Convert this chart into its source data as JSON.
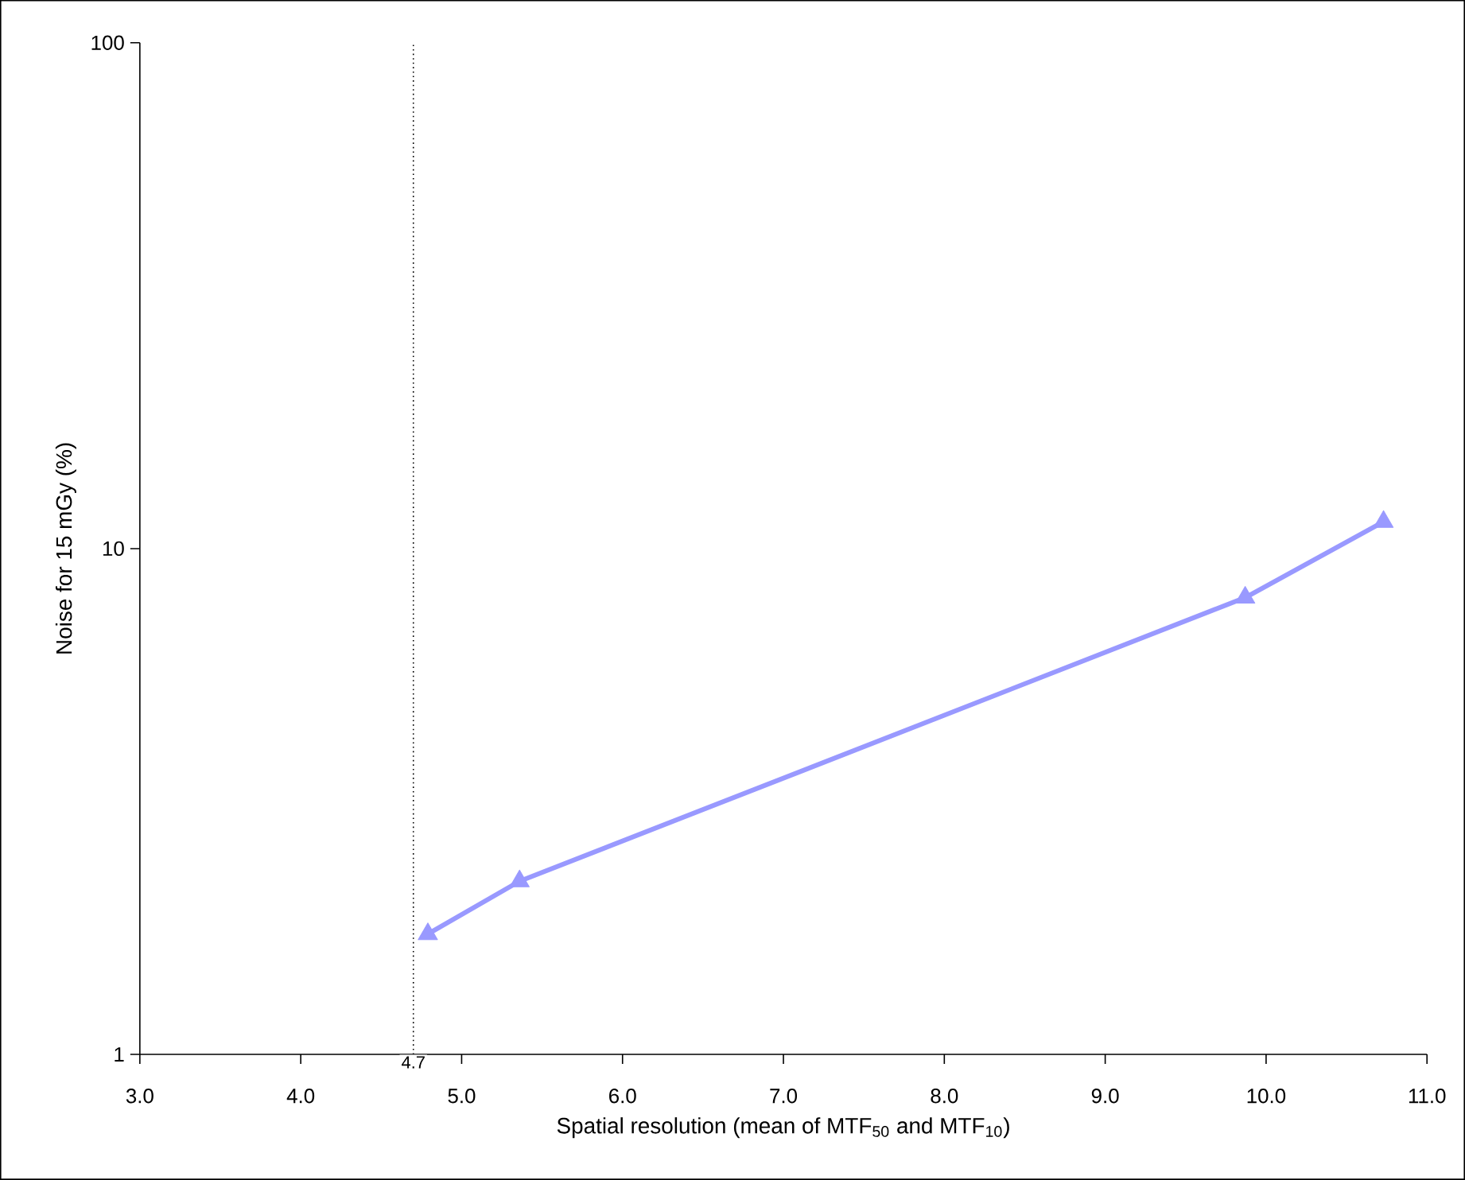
{
  "chart_data": {
    "type": "line",
    "xlabel": "Spatial resolution (mean of MTF$_{50}$ and MTF$_{10}$)",
    "ylabel": "Noise for 15 mGy (%)",
    "series": [
      {
        "color": "#9999ff",
        "x": [
          4.79,
          5.36,
          9.87,
          10.73
        ],
        "values": [
          1.73,
          2.2,
          8.0,
          11.3
        ]
      }
    ],
    "xlim": [
      3.0,
      11.0
    ],
    "xticks": [
      {
        "value": 3,
        "label": "3.0"
      },
      {
        "value": 4,
        "label": "4.0"
      },
      {
        "value": 5,
        "label": "5.0"
      },
      {
        "value": 6,
        "label": "6.0"
      },
      {
        "value": 7,
        "label": "7.0"
      },
      {
        "value": 8,
        "label": "8.0"
      },
      {
        "value": 9,
        "label": "9.0"
      },
      {
        "value": 10,
        "label": "10.0"
      },
      {
        "value": 11,
        "label": "11.0"
      }
    ],
    "ylim": [
      1,
      100
    ],
    "yticks": [
      1,
      10,
      100
    ],
    "log": "y",
    "marker": "triangle",
    "line_style": "solid",
    "ref_lines": [
      {
        "axis": "x",
        "value": 4.7,
        "label": "4.7",
        "line_style": "dotted",
        "color": "#000000"
      }
    ]
  }
}
